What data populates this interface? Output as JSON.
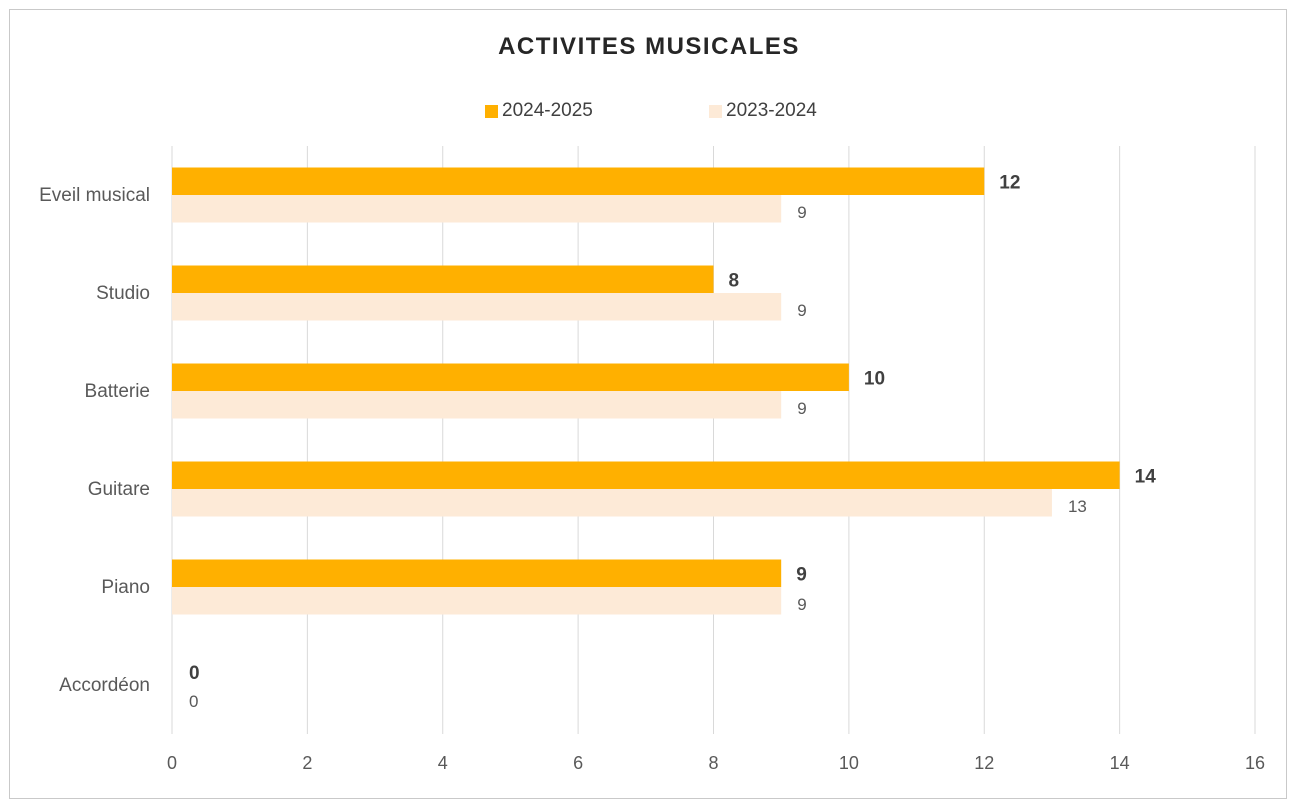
{
  "chart_data": {
    "type": "bar",
    "orientation": "horizontal",
    "title": "ACTIVITES MUSICALES",
    "categories": [
      "Eveil musical",
      "Studio",
      "Batterie",
      "Guitare",
      "Piano",
      "Accordéon"
    ],
    "series": [
      {
        "name": "2024-2025",
        "values": [
          12,
          8,
          10,
          14,
          9,
          0
        ],
        "color": "#FFB000",
        "label_bold": true
      },
      {
        "name": "2023-2024",
        "values": [
          9,
          9,
          9,
          13,
          9,
          0
        ],
        "color": "#FDEAD7",
        "label_bold": false
      }
    ],
    "xlim": [
      0,
      16
    ],
    "xticks": [
      "0",
      "2",
      "4",
      "6",
      "8",
      "10",
      "12",
      "14",
      "16"
    ],
    "grid": true,
    "legend_position": "top"
  }
}
